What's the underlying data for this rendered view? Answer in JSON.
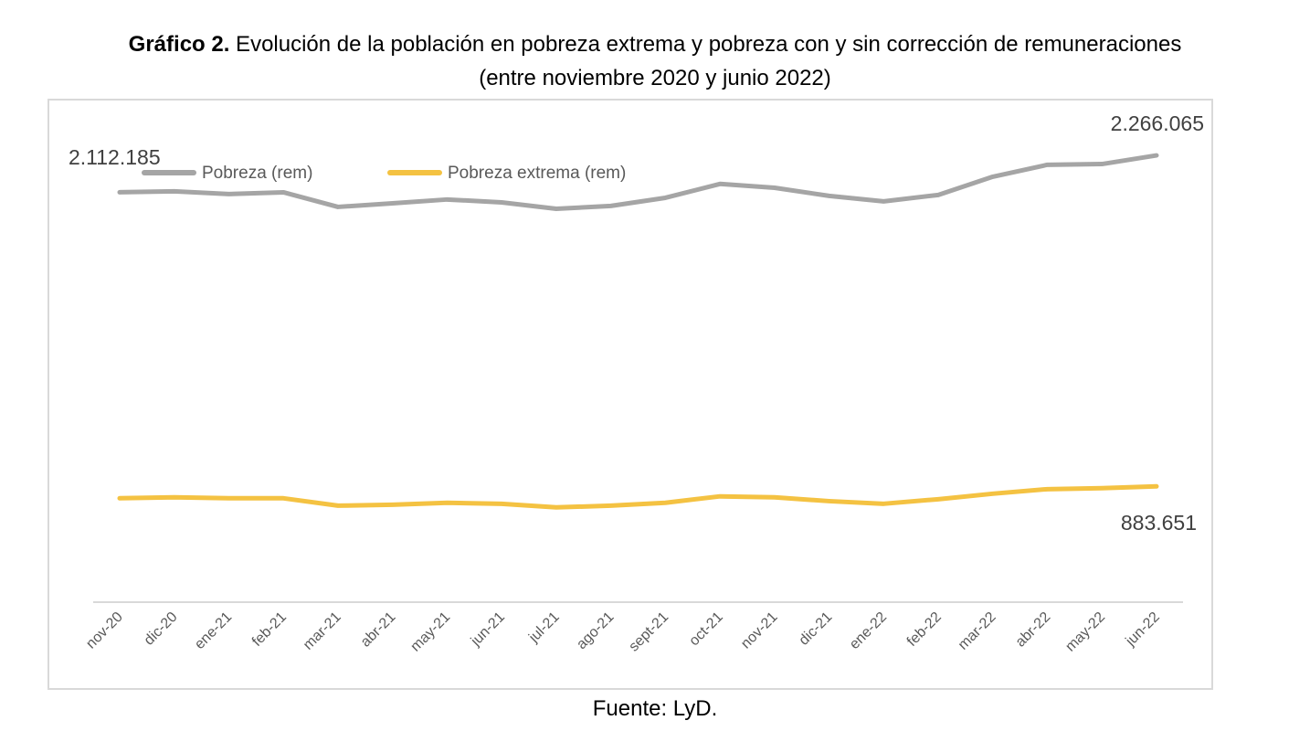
{
  "title": {
    "bold": "Gráfico 2.",
    "line1": " Evolución de la población en pobreza extrema y pobreza con y sin corrección de remuneraciones",
    "line2": "(entre noviembre 2020 y junio 2022)"
  },
  "source": "Fuente: LyD.",
  "chart_data": {
    "type": "line",
    "title": "Gráfico 2. Evolución de la población en pobreza extrema y pobreza con y sin corrección de remuneraciones (entre noviembre 2020 y junio 2022)",
    "xlabel": "",
    "ylabel": "",
    "ylim": [
      400000,
      2400000
    ],
    "grid": false,
    "y_axis_visible": false,
    "legend_placement": "top",
    "categories": [
      "nov-20",
      "dic-20",
      "ene-21",
      "feb-21",
      "mar-21",
      "abr-21",
      "may-21",
      "jun-21",
      "jul-21",
      "ago-21",
      "sept-21",
      "oct-21",
      "nov-21",
      "dic-21",
      "ene-22",
      "feb-22",
      "mar-22",
      "abr-22",
      "may-22",
      "jun-22"
    ],
    "series": [
      {
        "name": "Pobreza (rem)",
        "color": "#a5a5a5",
        "values": [
          2112185,
          2116000,
          2104500,
          2112000,
          2051000,
          2066000,
          2082000,
          2070000,
          2043000,
          2055000,
          2089000,
          2147000,
          2131000,
          2097000,
          2074000,
          2101000,
          2177000,
          2227000,
          2230000,
          2266065
        ],
        "data_labels": {
          "first": "2.112.185",
          "last": "2.266.065"
        }
      },
      {
        "name": "Pobreza extrema (rem)",
        "color": "#f4c242",
        "values": [
          834000,
          838000,
          834000,
          834000,
          803000,
          807000,
          815000,
          811000,
          796000,
          803000,
          815000,
          842000,
          838000,
          822000,
          811000,
          830000,
          853000,
          872000,
          876000,
          883651
        ],
        "data_labels": {
          "last": "883.651"
        }
      }
    ]
  }
}
